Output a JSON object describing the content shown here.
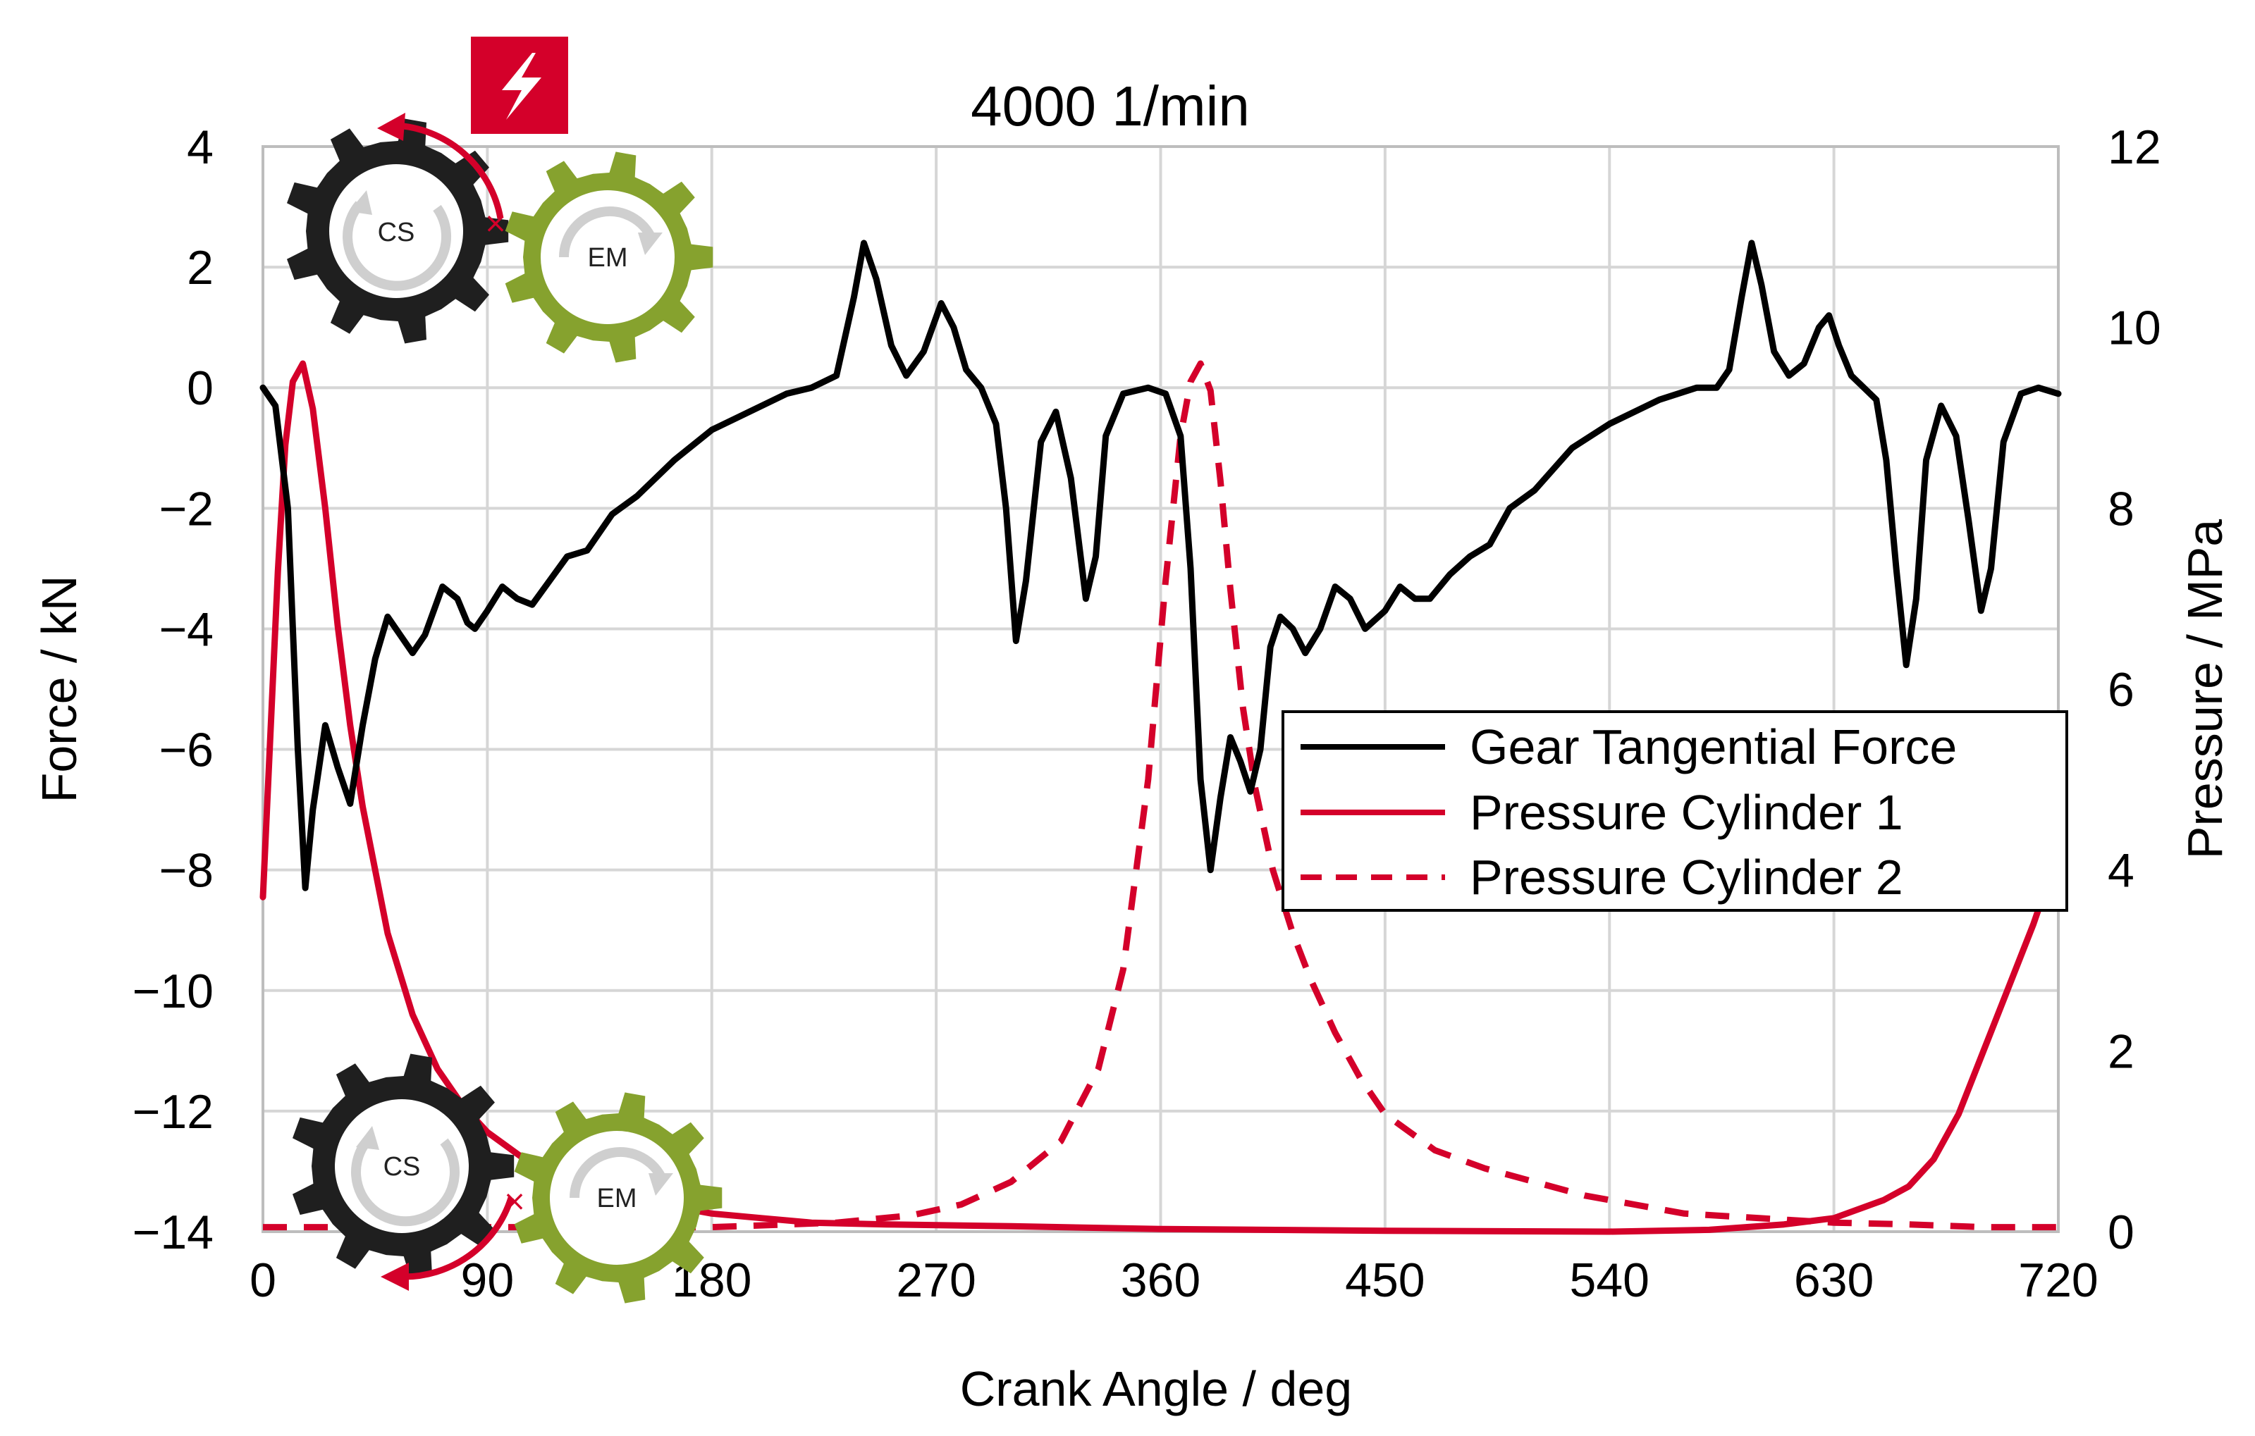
{
  "chart_data": {
    "type": "line",
    "title": "4000 1/min",
    "xlabel": "Crank Angle / deg",
    "ylabel": "Force / kN",
    "y2label": "Pressure / MPa",
    "xlim": [
      0,
      720
    ],
    "ylim": [
      -14,
      4
    ],
    "y2lim": [
      0,
      12
    ],
    "xticks": [
      0,
      90,
      180,
      270,
      360,
      450,
      540,
      630,
      720
    ],
    "yticks": [
      4,
      2,
      0,
      -2,
      -4,
      -6,
      -8,
      -10,
      -12,
      -14
    ],
    "y2ticks": [
      12,
      10,
      8,
      6,
      4,
      2,
      0
    ],
    "xtick_labels": [
      "0",
      "90",
      "180",
      "270",
      "360",
      "450",
      "540",
      "630",
      "720"
    ],
    "ytick_labels": [
      "4",
      "2",
      "0",
      "−2",
      "−4",
      "−6",
      "−8",
      "−10",
      "−12",
      "−14"
    ],
    "y2tick_labels": [
      "12",
      "10",
      "8",
      "6",
      "4",
      "2",
      "0"
    ],
    "grid": true,
    "legend_position": "right",
    "series": [
      {
        "name": "Gear Tangential Force",
        "axis": "left",
        "color": "#000000",
        "style": "solid",
        "points": [
          [
            0,
            0
          ],
          [
            5,
            -0.3
          ],
          [
            10,
            -2
          ],
          [
            14,
            -6
          ],
          [
            17,
            -8.3
          ],
          [
            20,
            -7
          ],
          [
            25,
            -5.6
          ],
          [
            30,
            -6.3
          ],
          [
            35,
            -6.9
          ],
          [
            40,
            -5.6
          ],
          [
            45,
            -4.5
          ],
          [
            50,
            -3.8
          ],
          [
            55,
            -4.1
          ],
          [
            60,
            -4.4
          ],
          [
            65,
            -4.1
          ],
          [
            72,
            -3.3
          ],
          [
            78,
            -3.5
          ],
          [
            82,
            -3.9
          ],
          [
            85,
            -4
          ],
          [
            90,
            -3.7
          ],
          [
            96,
            -3.3
          ],
          [
            102,
            -3.5
          ],
          [
            108,
            -3.6
          ],
          [
            115,
            -3.2
          ],
          [
            122,
            -2.8
          ],
          [
            130,
            -2.7
          ],
          [
            140,
            -2.1
          ],
          [
            150,
            -1.8
          ],
          [
            165,
            -1.2
          ],
          [
            180,
            -0.7
          ],
          [
            200,
            -0.3
          ],
          [
            210,
            -0.1
          ],
          [
            220,
            0
          ],
          [
            230,
            0.2
          ],
          [
            237,
            1.5
          ],
          [
            241,
            2.4
          ],
          [
            246,
            1.8
          ],
          [
            252,
            0.7
          ],
          [
            258,
            0.2
          ],
          [
            265,
            0.6
          ],
          [
            272,
            1.4
          ],
          [
            277,
            1
          ],
          [
            282,
            0.3
          ],
          [
            288,
            0
          ],
          [
            294,
            -0.6
          ],
          [
            298,
            -2
          ],
          [
            302,
            -4.2
          ],
          [
            306,
            -3.2
          ],
          [
            312,
            -0.9
          ],
          [
            318,
            -0.4
          ],
          [
            324,
            -1.5
          ],
          [
            330,
            -3.5
          ],
          [
            334,
            -2.8
          ],
          [
            338,
            -0.8
          ],
          [
            345,
            -0.1
          ],
          [
            355,
            0
          ],
          [
            362,
            -0.1
          ],
          [
            368,
            -0.8
          ],
          [
            372,
            -3
          ],
          [
            376,
            -6.5
          ],
          [
            380,
            -8
          ],
          [
            384,
            -6.8
          ],
          [
            388,
            -5.8
          ],
          [
            392,
            -6.2
          ],
          [
            396,
            -6.7
          ],
          [
            400,
            -6
          ],
          [
            404,
            -4.3
          ],
          [
            408,
            -3.8
          ],
          [
            413,
            -4
          ],
          [
            418,
            -4.4
          ],
          [
            424,
            -4
          ],
          [
            430,
            -3.3
          ],
          [
            436,
            -3.5
          ],
          [
            442,
            -4
          ],
          [
            450,
            -3.7
          ],
          [
            456,
            -3.3
          ],
          [
            462,
            -3.5
          ],
          [
            468,
            -3.5
          ],
          [
            476,
            -3.1
          ],
          [
            484,
            -2.8
          ],
          [
            492,
            -2.6
          ],
          [
            500,
            -2
          ],
          [
            510,
            -1.7
          ],
          [
            525,
            -1
          ],
          [
            540,
            -0.6
          ],
          [
            560,
            -0.2
          ],
          [
            575,
            0
          ],
          [
            583,
            0
          ],
          [
            588,
            0.3
          ],
          [
            593,
            1.5
          ],
          [
            597,
            2.4
          ],
          [
            601,
            1.7
          ],
          [
            606,
            0.6
          ],
          [
            612,
            0.2
          ],
          [
            618,
            0.4
          ],
          [
            624,
            1
          ],
          [
            628,
            1.2
          ],
          [
            632,
            0.7
          ],
          [
            637,
            0.2
          ],
          [
            642,
            0
          ],
          [
            647,
            -0.2
          ],
          [
            651,
            -1.2
          ],
          [
            655,
            -3
          ],
          [
            659,
            -4.6
          ],
          [
            663,
            -3.5
          ],
          [
            667,
            -1.2
          ],
          [
            673,
            -0.3
          ],
          [
            679,
            -0.8
          ],
          [
            684,
            -2.2
          ],
          [
            689,
            -3.7
          ],
          [
            693,
            -3
          ],
          [
            698,
            -0.9
          ],
          [
            705,
            -0.1
          ],
          [
            712,
            0
          ],
          [
            720,
            -0.1
          ]
        ]
      },
      {
        "name": "Pressure Cylinder 1",
        "axis": "right",
        "color": "#d4002a",
        "style": "solid",
        "points": [
          [
            0,
            3.7
          ],
          [
            3,
            5.5
          ],
          [
            6,
            7.3
          ],
          [
            9,
            8.7
          ],
          [
            12,
            9.4
          ],
          [
            16,
            9.6
          ],
          [
            20,
            9.1
          ],
          [
            25,
            8
          ],
          [
            30,
            6.7
          ],
          [
            35,
            5.6
          ],
          [
            40,
            4.7
          ],
          [
            50,
            3.3
          ],
          [
            60,
            2.4
          ],
          [
            70,
            1.8
          ],
          [
            80,
            1.4
          ],
          [
            90,
            1.1
          ],
          [
            105,
            0.8
          ],
          [
            120,
            0.6
          ],
          [
            140,
            0.4
          ],
          [
            160,
            0.3
          ],
          [
            180,
            0.2
          ],
          [
            200,
            0.15
          ],
          [
            220,
            0.1
          ],
          [
            250,
            0.08
          ],
          [
            300,
            0.06
          ],
          [
            360,
            0.03
          ],
          [
            450,
            0.01
          ],
          [
            540,
            0
          ],
          [
            580,
            0.02
          ],
          [
            610,
            0.08
          ],
          [
            630,
            0.15
          ],
          [
            650,
            0.35
          ],
          [
            660,
            0.5
          ],
          [
            670,
            0.8
          ],
          [
            680,
            1.3
          ],
          [
            690,
            2
          ],
          [
            700,
            2.7
          ],
          [
            710,
            3.4
          ],
          [
            715,
            3.8
          ],
          [
            720,
            4.2
          ]
        ]
      },
      {
        "name": "Pressure Cylinder 2",
        "axis": "right",
        "color": "#d4002a",
        "style": "dashed",
        "points": [
          [
            0,
            0.05
          ],
          [
            180,
            0.05
          ],
          [
            230,
            0.1
          ],
          [
            260,
            0.18
          ],
          [
            280,
            0.3
          ],
          [
            300,
            0.55
          ],
          [
            320,
            1
          ],
          [
            335,
            1.8
          ],
          [
            345,
            2.9
          ],
          [
            355,
            5
          ],
          [
            362,
            7.2
          ],
          [
            368,
            8.8
          ],
          [
            372,
            9.4
          ],
          [
            376,
            9.6
          ],
          [
            380,
            9.3
          ],
          [
            384,
            8.3
          ],
          [
            388,
            7.1
          ],
          [
            393,
            5.8
          ],
          [
            398,
            4.9
          ],
          [
            405,
            4
          ],
          [
            413,
            3.3
          ],
          [
            420,
            2.8
          ],
          [
            430,
            2.2
          ],
          [
            440,
            1.7
          ],
          [
            450,
            1.3
          ],
          [
            470,
            0.9
          ],
          [
            490,
            0.7
          ],
          [
            510,
            0.55
          ],
          [
            530,
            0.4
          ],
          [
            550,
            0.3
          ],
          [
            570,
            0.2
          ],
          [
            600,
            0.15
          ],
          [
            630,
            0.1
          ],
          [
            660,
            0.08
          ],
          [
            690,
            0.05
          ],
          [
            720,
            0.05
          ]
        ]
      }
    ]
  },
  "gear_labels": {
    "crankshaft": "CS",
    "electric_machine": "EM"
  },
  "colors": {
    "accent_red": "#d4002a",
    "gear_dark": "#1f1f1f",
    "gear_green": "#86a22e"
  },
  "icons": {
    "badge": "lightning-bolt-icon"
  }
}
